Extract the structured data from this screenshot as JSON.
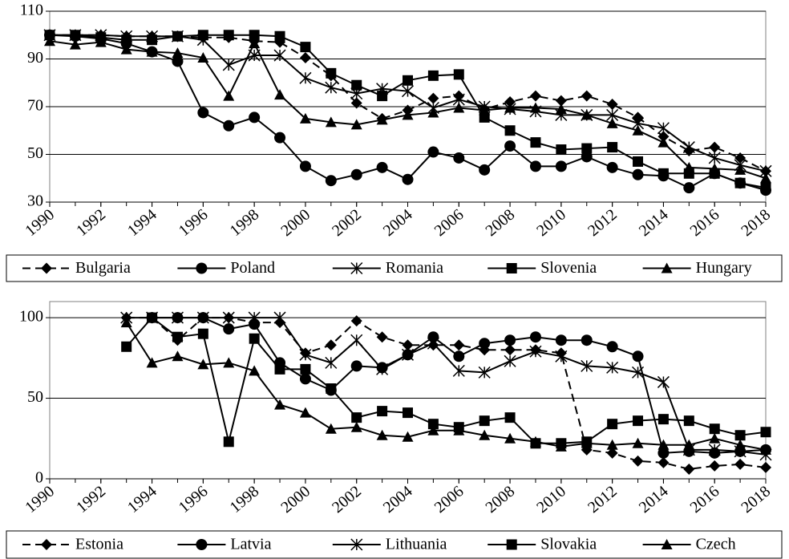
{
  "chart_data": [
    {
      "type": "line",
      "x": [
        1990,
        1991,
        1992,
        1993,
        1994,
        1995,
        1996,
        1997,
        1998,
        1999,
        2000,
        2001,
        2002,
        2003,
        2004,
        2005,
        2006,
        2007,
        2008,
        2009,
        2010,
        2011,
        2012,
        2013,
        2014,
        2015,
        2016,
        2017,
        2018
      ],
      "xlim": [
        1990,
        2018
      ],
      "xticks": [
        1990,
        1992,
        1994,
        1996,
        1998,
        2000,
        2002,
        2004,
        2006,
        2008,
        2010,
        2012,
        2014,
        2016,
        2018
      ],
      "ylim": [
        30,
        110
      ],
      "yticks": [
        30,
        50,
        70,
        90,
        110
      ],
      "grid": true,
      "legend": "bottom",
      "series": [
        {
          "name": "Bulgaria",
          "color": "#000000",
          "marker": "diamond",
          "dashed": true,
          "values": [
            100,
            100,
            100,
            99.5,
            99.5,
            99.5,
            99,
            99,
            97.5,
            97,
            90.5,
            83,
            71.5,
            65,
            68.5,
            73.5,
            74.5,
            69,
            72,
            74.5,
            72.5,
            74.5,
            71,
            65.5,
            57.5,
            51.5,
            53,
            48.5,
            43
          ]
        },
        {
          "name": "Poland",
          "color": "#000000",
          "marker": "circle",
          "dashed": false,
          "values": [
            100,
            99.5,
            98.5,
            96.5,
            93,
            89,
            67.5,
            62,
            65.5,
            57,
            45,
            39,
            41.5,
            44.5,
            39.5,
            51,
            48.5,
            43.5,
            53.5,
            45,
            45,
            49,
            44.5,
            41.5,
            41,
            36,
            42,
            38,
            35
          ]
        },
        {
          "name": "Romania",
          "color": "#000000",
          "marker": "star",
          "dashed": false,
          "values": [
            100,
            100,
            100,
            99.5,
            99.5,
            99.5,
            98,
            87.5,
            91.5,
            91.5,
            82,
            78,
            75.5,
            77.5,
            76.5,
            69.5,
            73,
            70,
            69,
            68,
            66.5,
            66.5,
            66.5,
            63,
            61,
            53,
            48.5,
            45.5,
            43
          ]
        },
        {
          "name": "Slovenia",
          "color": "#000000",
          "marker": "square",
          "dashed": false,
          "values": [
            100,
            100,
            99,
            98,
            98,
            99.5,
            100,
            100,
            100,
            99.5,
            95,
            84,
            79,
            74.5,
            81,
            83,
            83.5,
            65.5,
            60,
            55,
            52,
            52.5,
            53,
            47,
            42,
            42,
            42,
            38,
            36
          ]
        },
        {
          "name": "Hungary",
          "color": "#000000",
          "marker": "triangle",
          "dashed": false,
          "values": [
            97.5,
            96,
            97,
            94,
            93,
            92.5,
            90.5,
            74.5,
            96.5,
            75,
            65,
            63.5,
            62.5,
            64.5,
            66.5,
            67.5,
            69.5,
            68.5,
            69.5,
            69.5,
            69,
            66.5,
            63,
            60,
            55,
            44.5,
            44,
            43.5,
            40
          ]
        }
      ]
    },
    {
      "type": "line",
      "x": [
        1990,
        1991,
        1992,
        1993,
        1994,
        1995,
        1996,
        1997,
        1998,
        1999,
        2000,
        2001,
        2002,
        2003,
        2004,
        2005,
        2006,
        2007,
        2008,
        2009,
        2010,
        2011,
        2012,
        2013,
        2014,
        2015,
        2016,
        2017,
        2018
      ],
      "xlim": [
        1990,
        2018
      ],
      "xticks": [
        1990,
        1992,
        1994,
        1996,
        1998,
        2000,
        2002,
        2004,
        2006,
        2008,
        2010,
        2012,
        2014,
        2016,
        2018
      ],
      "ylim": [
        0,
        110
      ],
      "yticks": [
        0,
        50,
        100
      ],
      "grid": true,
      "legend": "bottom",
      "series": [
        {
          "name": "Estonia",
          "color": "#000000",
          "marker": "diamond",
          "dashed": true,
          "values": [
            null,
            null,
            null,
            100,
            100,
            86,
            100,
            100,
            97,
            97,
            78,
            83,
            98,
            88,
            83,
            83,
            83,
            80,
            80,
            80,
            78,
            18,
            16,
            11,
            10,
            6,
            8,
            9,
            7
          ]
        },
        {
          "name": "Latvia",
          "color": "#000000",
          "marker": "circle",
          "dashed": false,
          "values": [
            null,
            null,
            null,
            null,
            100,
            100,
            100,
            93,
            96,
            72,
            62,
            55,
            70,
            69,
            77,
            88,
            76,
            84,
            86,
            88,
            86,
            86,
            82,
            76,
            16,
            17,
            16,
            17,
            18
          ]
        },
        {
          "name": "Lithuania",
          "color": "#000000",
          "marker": "star",
          "dashed": false,
          "values": [
            null,
            null,
            null,
            100,
            100,
            100,
            100,
            100,
            100,
            100,
            77,
            72,
            86,
            68,
            77,
            84,
            67,
            66,
            73,
            79,
            76,
            70,
            69,
            66,
            60,
            18,
            18,
            17,
            15
          ]
        },
        {
          "name": "Slovakia",
          "color": "#000000",
          "marker": "square",
          "dashed": false,
          "values": [
            null,
            null,
            null,
            82,
            100,
            88,
            90,
            23,
            87,
            68,
            68,
            56,
            38,
            42,
            41,
            34,
            32,
            36,
            38,
            22,
            22,
            23,
            34,
            36,
            37,
            36,
            31,
            27,
            29
          ]
        },
        {
          "name": "Czech",
          "color": "#000000",
          "marker": "triangle",
          "dashed": false,
          "values": [
            null,
            null,
            null,
            97,
            72,
            76,
            71,
            72,
            67,
            46,
            41,
            31,
            32,
            27,
            26,
            30,
            30,
            27,
            25,
            23,
            20,
            22,
            21,
            22,
            21,
            21,
            25,
            21,
            18
          ]
        }
      ]
    }
  ]
}
